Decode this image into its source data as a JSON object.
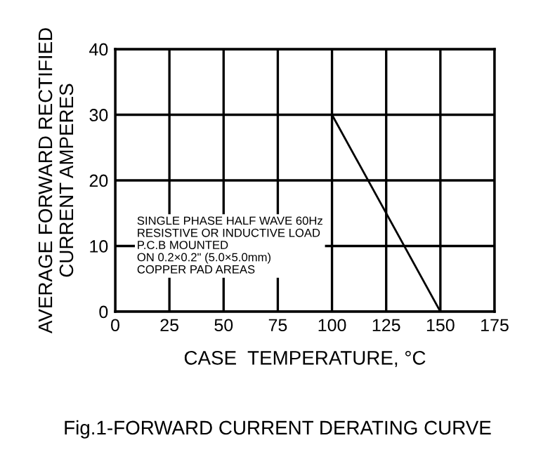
{
  "chart_data": {
    "type": "line",
    "title": "Fig.1-FORWARD CURRENT DERATING CURVE",
    "xlabel": "CASE  TEMPERATURE, °C",
    "ylabel": "AVERAGE FORWARD RECTIFIED\nCURRENT AMPERES",
    "x": [
      0,
      100,
      150
    ],
    "series": [
      {
        "color": "#000000",
        "values": [
          30,
          30,
          0
        ]
      }
    ],
    "xlim": [
      0,
      175
    ],
    "xticks": [
      0,
      25,
      50,
      75,
      100,
      125,
      150,
      175
    ],
    "ylim": [
      0,
      40
    ],
    "yticks": [
      0,
      10,
      20,
      30,
      40
    ],
    "grid": true,
    "marker": "none",
    "line_style": "solid",
    "annotations": [
      "SINGLE PHASE HALF WAVE 60Hz\nRESISTIVE OR INDUCTIVE LOAD\nP.C.B MOUNTED\nON 0.2×0.2\" (5.0×5.0mm)\nCOPPER PAD AREAS"
    ]
  }
}
